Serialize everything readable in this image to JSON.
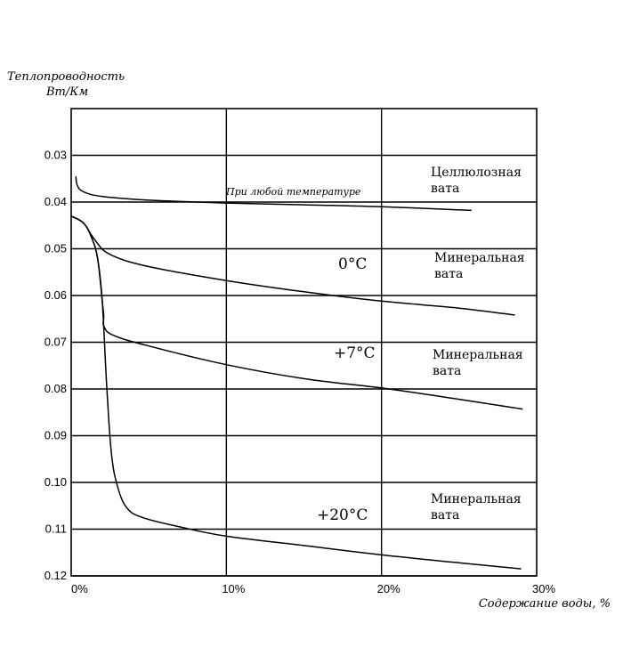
{
  "chart_data": {
    "type": "line",
    "ylabel_line1": "Теплопроводность",
    "ylabel_line2": "Вт/Км",
    "xlabel": "Содержание воды, %",
    "xlim": [
      0,
      30
    ],
    "ylim": [
      0.02,
      0.12
    ],
    "y_inverted": true,
    "grid": true,
    "x_ticks": [
      "0%",
      "10%",
      "20%",
      "30%"
    ],
    "y_ticks": [
      {
        "value": 0.03,
        "label": "0.03"
      },
      {
        "value": 0.04,
        "label": "0.04"
      },
      {
        "value": 0.05,
        "label": "0.05"
      },
      {
        "value": 0.06,
        "label": "0.06"
      },
      {
        "value": 0.07,
        "label": "0.07"
      },
      {
        "value": 0.08,
        "label": "0.08"
      },
      {
        "value": 0.09,
        "label": "0.09"
      },
      {
        "value": 0.1,
        "label": "0.10"
      },
      {
        "value": 0.11,
        "label": "0.11"
      },
      {
        "value": 0.12,
        "label": "0.12"
      }
    ],
    "note": "При любой температуре",
    "series": [
      {
        "key": "cellulose",
        "labels": [
          "Целлюлозная",
          "вата"
        ],
        "temp": "",
        "points": [
          [
            0.3,
            0.0345
          ],
          [
            0.4,
            0.0365
          ],
          [
            0.8,
            0.0378
          ],
          [
            2,
            0.0388
          ],
          [
            5,
            0.0396
          ],
          [
            10,
            0.0402
          ],
          [
            15,
            0.0406
          ],
          [
            20,
            0.041
          ],
          [
            25.8,
            0.0418
          ]
        ]
      },
      {
        "key": "mineral_0",
        "labels": [
          "Минеральная",
          "вата"
        ],
        "temp": "0°C",
        "points": [
          [
            0,
            0.043
          ],
          [
            0.8,
            0.0445
          ],
          [
            1.5,
            0.048
          ],
          [
            2.5,
            0.0512
          ],
          [
            5,
            0.0538
          ],
          [
            10,
            0.0568
          ],
          [
            15,
            0.0592
          ],
          [
            20,
            0.0612
          ],
          [
            25,
            0.0627
          ],
          [
            28.6,
            0.0642
          ]
        ]
      },
      {
        "key": "mineral_7",
        "labels": [
          "Минеральная",
          "вата"
        ],
        "temp": "+7°C",
        "points": [
          [
            0,
            0.043
          ],
          [
            0.8,
            0.0445
          ],
          [
            1.3,
            0.0475
          ],
          [
            1.7,
            0.052
          ],
          [
            2.0,
            0.0612
          ],
          [
            2.1,
            0.0645
          ],
          [
            2.1,
            0.0665
          ],
          [
            2.7,
            0.0685
          ],
          [
            5,
            0.0708
          ],
          [
            10,
            0.0748
          ],
          [
            15,
            0.0778
          ],
          [
            20,
            0.0798
          ],
          [
            25,
            0.0822
          ],
          [
            29.1,
            0.0843
          ]
        ]
      },
      {
        "key": "mineral_20",
        "labels": [
          "Минеральная",
          "вата"
        ],
        "temp": "+20°C",
        "points": [
          [
            0,
            0.043
          ],
          [
            0.8,
            0.0445
          ],
          [
            1.3,
            0.0475
          ],
          [
            1.7,
            0.052
          ],
          [
            2.0,
            0.0612
          ],
          [
            2.3,
            0.08
          ],
          [
            2.6,
            0.094
          ],
          [
            3.0,
            0.101
          ],
          [
            3.6,
            0.1055
          ],
          [
            4.6,
            0.1075
          ],
          [
            7,
            0.1095
          ],
          [
            10,
            0.1115
          ],
          [
            15,
            0.1135
          ],
          [
            20,
            0.1155
          ],
          [
            25,
            0.1172
          ],
          [
            29,
            0.1185
          ]
        ]
      }
    ]
  }
}
